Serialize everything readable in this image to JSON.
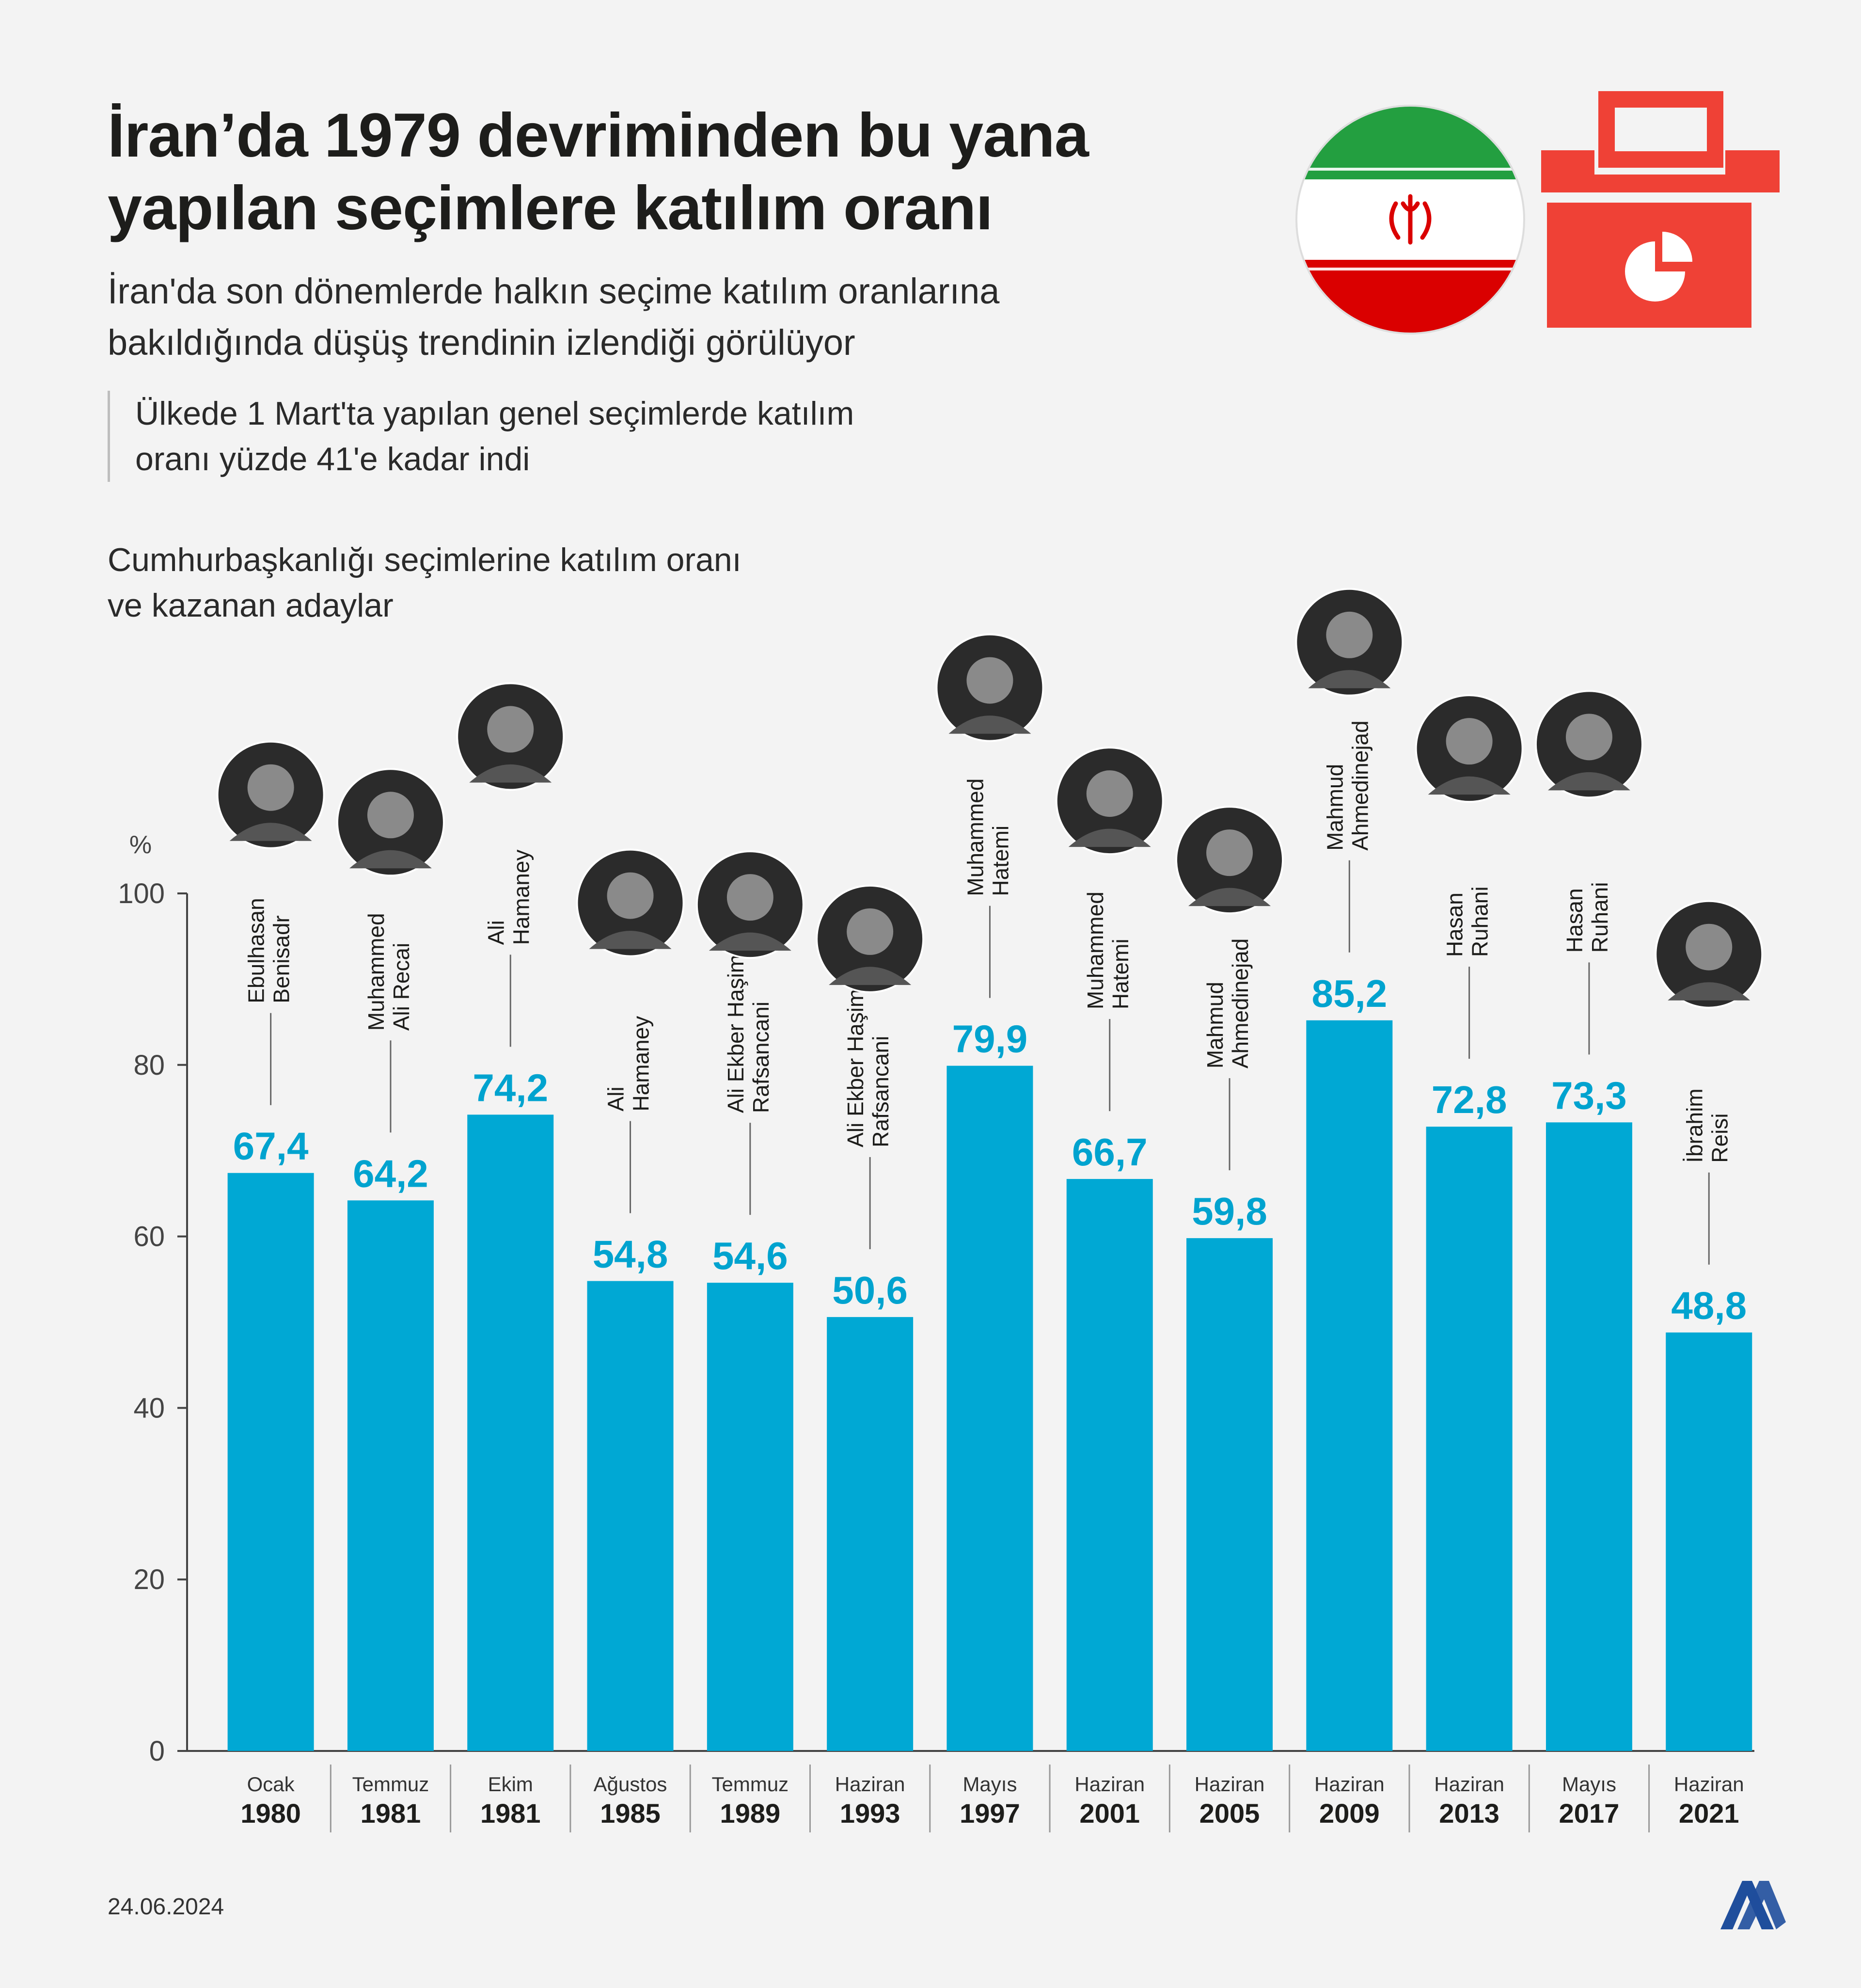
{
  "header": {
    "title_lines": [
      "İran’da 1979 devriminden bu yana",
      "yapılan seçimlere katılım oranı"
    ],
    "subtitle_lines": [
      "İran'da son dönemlerde halkın seçime katılım oranlarına",
      "bakıldığında düşüş trendinin izlendiği görülüyor"
    ],
    "note_lines": [
      "Ülkede 1 Mart'ta yapılan genel seçimlerde katılım",
      "oranı yüzde 41'e kadar indi"
    ]
  },
  "icons": {
    "flag": "iran-flag-icon",
    "ballot": "ballot-box-icon",
    "logo": "aa-logo-icon"
  },
  "colors": {
    "bar": "#00a8d4",
    "value_label": "#00a3cf",
    "ballot": "#ef4136",
    "flag_green": "#239f40",
    "flag_red": "#da0000"
  },
  "chart_data": {
    "type": "bar",
    "title_lines": [
      "Cumhurbaşkanlığı seçimlerine katılım oranı",
      "ve kazanan adaylar"
    ],
    "ylabel": "%",
    "ylim": [
      0,
      100
    ],
    "yticks": [
      0,
      20,
      40,
      60,
      80,
      100
    ],
    "grid": false,
    "categories": [
      {
        "month": "Ocak",
        "year": "1980"
      },
      {
        "month": "Temmuz",
        "year": "1981"
      },
      {
        "month": "Ekim",
        "year": "1981"
      },
      {
        "month": "Ağustos",
        "year": "1985"
      },
      {
        "month": "Temmuz",
        "year": "1989"
      },
      {
        "month": "Haziran",
        "year": "1993"
      },
      {
        "month": "Mayıs",
        "year": "1997"
      },
      {
        "month": "Haziran",
        "year": "2001"
      },
      {
        "month": "Haziran",
        "year": "2005"
      },
      {
        "month": "Haziran",
        "year": "2009"
      },
      {
        "month": "Haziran",
        "year": "2013"
      },
      {
        "month": "Mayıs",
        "year": "2017"
      },
      {
        "month": "Haziran",
        "year": "2021"
      }
    ],
    "values": [
      67.4,
      64.2,
      74.2,
      54.8,
      54.6,
      50.6,
      79.9,
      66.7,
      59.8,
      85.2,
      72.8,
      73.3,
      48.8
    ],
    "value_labels": [
      "67,4",
      "64,2",
      "74,2",
      "54,8",
      "54,6",
      "50,6",
      "79,9",
      "66,7",
      "59,8",
      "85,2",
      "72,8",
      "73,3",
      "48,8"
    ],
    "winners": [
      [
        "Ebulhasan",
        "Benisadr"
      ],
      [
        "Muhammed",
        "Ali Recai"
      ],
      [
        "Ali",
        "Hamaney"
      ],
      [
        "Ali",
        "Hamaney"
      ],
      [
        "Ali Ekber Haşimi",
        "Rafsancani"
      ],
      [
        "Ali Ekber Haşimi",
        "Rafsancani"
      ],
      [
        "Muhammed",
        "Hatemi"
      ],
      [
        "Muhammed",
        "Hatemi"
      ],
      [
        "Mahmud",
        "Ahmedinejad"
      ],
      [
        "Mahmud",
        "Ahmedinejad"
      ],
      [
        "Hasan",
        "Ruhani"
      ],
      [
        "Hasan",
        "Ruhani"
      ],
      [
        "İbrahim",
        "Reisi"
      ]
    ]
  },
  "footer": {
    "date": "24.06.2024"
  }
}
